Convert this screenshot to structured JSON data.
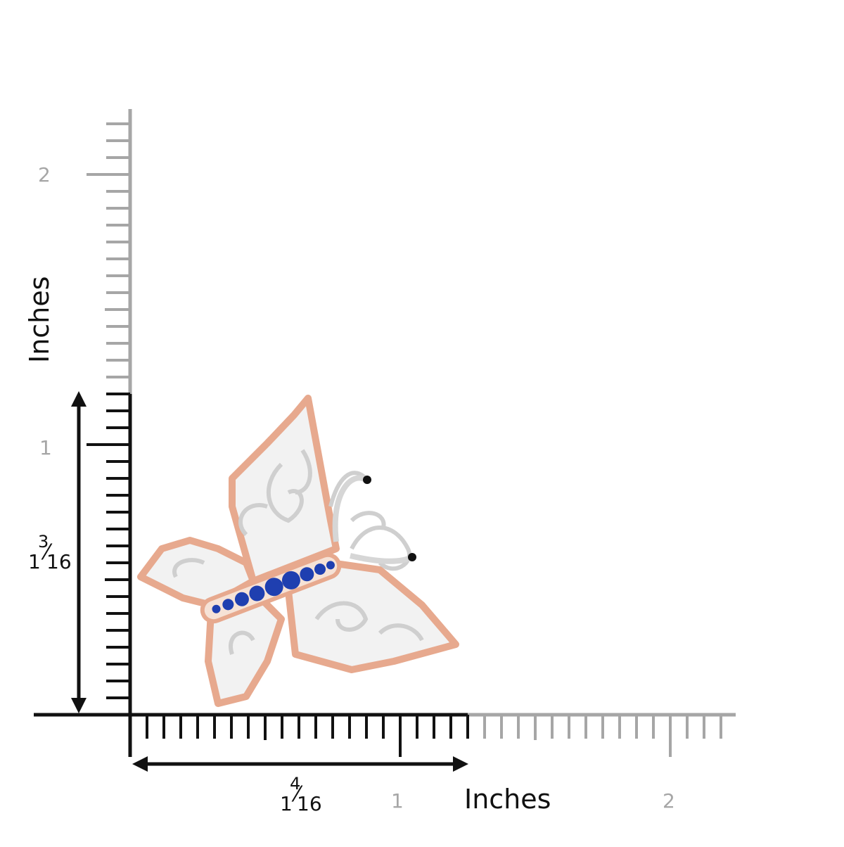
{
  "axes": {
    "unit_label_x": "Inches",
    "unit_label_y": "Inches",
    "x_tick_labels": [
      "1",
      "2"
    ],
    "y_tick_labels": [
      "1",
      "2"
    ],
    "ruler_color_measured": "#111111",
    "ruler_color_rest": "#a6a6a6"
  },
  "dimensions": {
    "width": {
      "whole": "1",
      "numerator": "4",
      "denominator": "16",
      "inches": 1.25
    },
    "height": {
      "whole": "1",
      "numerator": "3",
      "denominator": "16",
      "inches": 1.1875
    }
  },
  "product": {
    "metal_colors": {
      "rose": "#e7a98e",
      "white": "#dcdcdc"
    },
    "accent_stone_color": "#1f3fb0",
    "eye_stone_color": "#111111",
    "pave_color": "#f4f4f4"
  }
}
